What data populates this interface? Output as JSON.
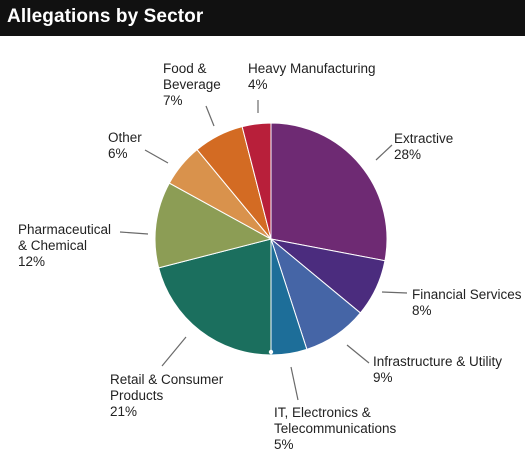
{
  "header": {
    "title": "Allegations by Sector"
  },
  "chart_data": {
    "type": "pie",
    "title": "Allegations by Sector",
    "slices": [
      {
        "label": [
          "Extractive"
        ],
        "pct_text": "28%",
        "value": 28,
        "color": "#6e2a73"
      },
      {
        "label": [
          "Financial Services"
        ],
        "pct_text": "8%",
        "value": 8,
        "color": "#4b2c7e"
      },
      {
        "label": [
          "Infrastructure & Utility"
        ],
        "pct_text": "9%",
        "value": 9,
        "color": "#4565a6"
      },
      {
        "label": [
          "IT, Electronics &",
          "Telecommunications"
        ],
        "pct_text": "5%",
        "value": 5,
        "color": "#1d6e99"
      },
      {
        "label": [
          "Retail & Consumer",
          "Products"
        ],
        "pct_text": "21%",
        "value": 21,
        "color": "#1b6f5e"
      },
      {
        "label": [
          "Pharmaceutical",
          "& Chemical"
        ],
        "pct_text": "12%",
        "value": 12,
        "color": "#8c9d55"
      },
      {
        "label": [
          "Other"
        ],
        "pct_text": "6%",
        "value": 6,
        "color": "#d9924c"
      },
      {
        "label": [
          "Food &",
          "Beverage"
        ],
        "pct_text": "7%",
        "value": 7,
        "color": "#d36b23"
      },
      {
        "label": [
          "Heavy Manufacturing"
        ],
        "pct_text": "4%",
        "value": 4,
        "color": "#b81f3a"
      }
    ]
  }
}
